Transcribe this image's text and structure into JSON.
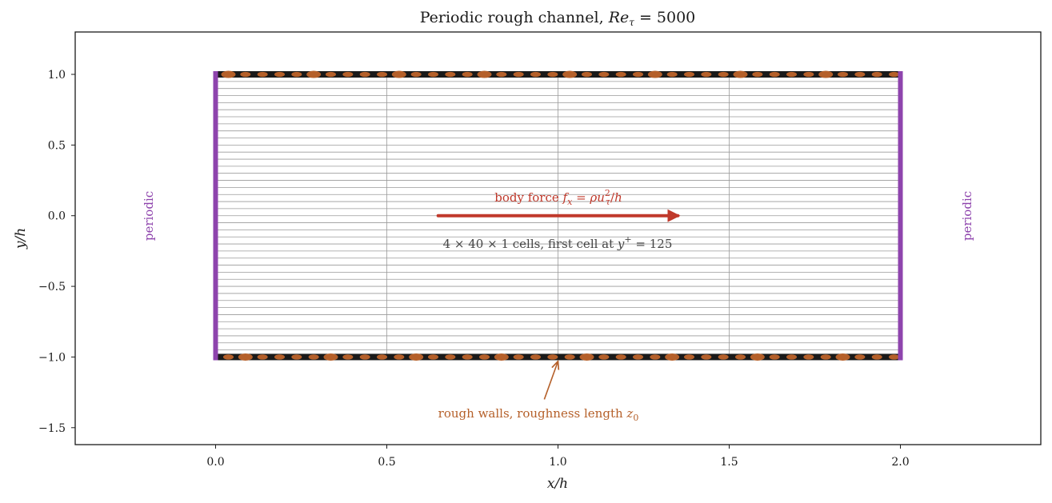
{
  "chart_data": {
    "type": "diagram",
    "title": "Periodic rough channel, Re_τ = 5000",
    "xlabel": "x/h",
    "ylabel": "y/h",
    "xlim": [
      -0.41,
      2.41
    ],
    "ylim": [
      -1.62,
      1.3
    ],
    "xticks": [
      0.0,
      0.5,
      1.0,
      1.5,
      2.0
    ],
    "xtick_labels": [
      "0.0",
      "0.5",
      "1.0",
      "1.5",
      "2.0"
    ],
    "yticks": [
      -1.5,
      -1.0,
      -0.5,
      0.0,
      0.5,
      1.0
    ],
    "ytick_labels": [
      "−1.5",
      "−1.0",
      "−0.5",
      "0.0",
      "0.5",
      "1.0"
    ],
    "domain": {
      "x": [
        0,
        2
      ],
      "y": [
        -1,
        1
      ]
    },
    "mesh": {
      "nx": 4,
      "ny": 40
    },
    "annotations": {
      "body_force": "body force f_x = ρu_τ²/h",
      "cells": "4 × 40 × 1 cells, first cell at y⁺ = 125",
      "rough_walls": "rough walls, roughness length z₀",
      "periodic_left": "periodic",
      "periodic_right": "periodic"
    },
    "force_arrow": {
      "x_start": 0.65,
      "x_end": 1.35,
      "y": 0.0
    },
    "rough_arrow": {
      "from": [
        0.96,
        -1.3
      ],
      "to": [
        1.0,
        -1.03
      ]
    },
    "colors": {
      "wall": "#1a1a1a",
      "roughness": "#b5602a",
      "periodic": "#8e44ad",
      "force": "#c0392b",
      "mesh": "#9a9a9a"
    }
  }
}
